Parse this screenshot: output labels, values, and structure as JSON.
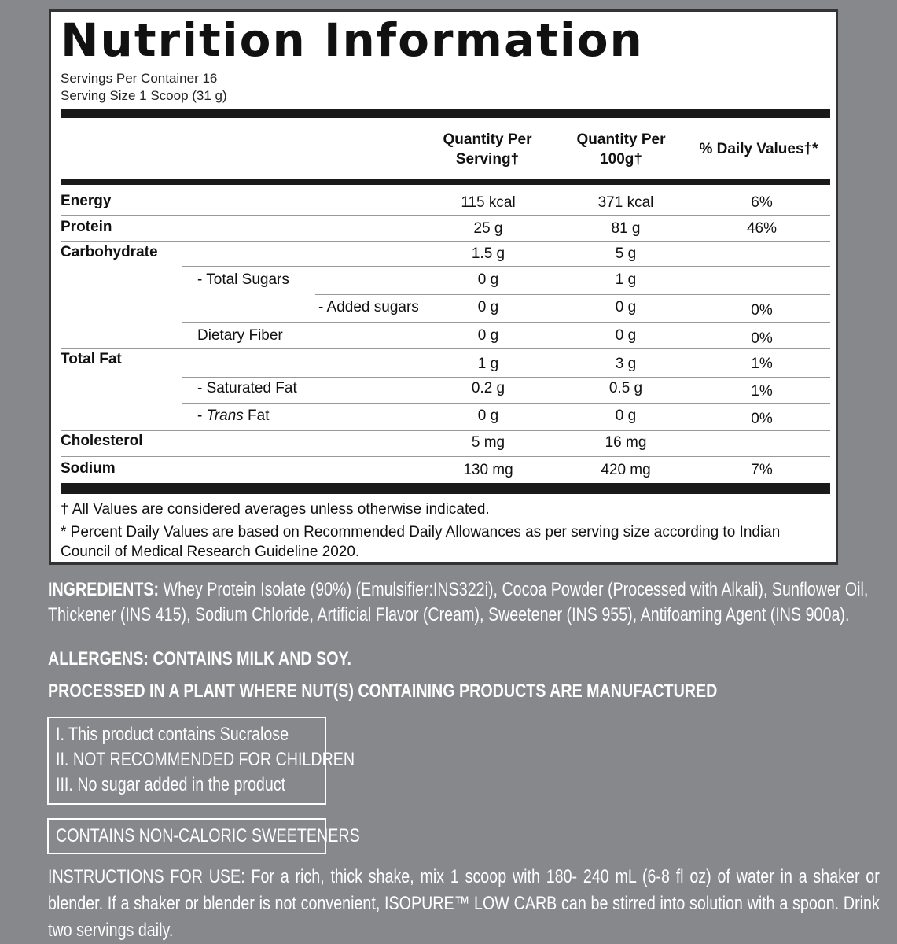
{
  "title": "Nutrition Information",
  "servings_per_container": "Servings Per Container 16",
  "serving_size": "Serving Size 1 Scoop (31 g)",
  "columns": [
    "Quantity Per Serving†",
    "Quantity Per 100g†",
    "% Daily Values†*"
  ],
  "rows": [
    {
      "label": "Energy",
      "level": 0,
      "per_serving": "115 kcal",
      "per_100g": "371 kcal",
      "dv": "6%"
    },
    {
      "label": "Protein",
      "level": 0,
      "per_serving": "25 g",
      "per_100g": "81 g",
      "dv": "46%"
    },
    {
      "label": "Carbohydrate",
      "level": 0,
      "per_serving": "1.5 g",
      "per_100g": "5 g",
      "dv": ""
    },
    {
      "label": "- Total Sugars",
      "level": 1,
      "per_serving": "0 g",
      "per_100g": "1 g",
      "dv": ""
    },
    {
      "label": "- Added sugars",
      "level": 2,
      "per_serving": "0 g",
      "per_100g": "0 g",
      "dv": "0%"
    },
    {
      "label": "Dietary Fiber",
      "level": 1,
      "per_serving": "0 g",
      "per_100g": "0 g",
      "dv": "0%"
    },
    {
      "label": "Total Fat",
      "level": 0,
      "per_serving": "1 g",
      "per_100g": "3 g",
      "dv": "1%"
    },
    {
      "label": "- Saturated Fat",
      "level": 1,
      "per_serving": "0.2 g",
      "per_100g": "0.5 g",
      "dv": "1%"
    },
    {
      "label": "- Trans Fat",
      "level": 1,
      "per_serving": "0 g",
      "per_100g": "0 g",
      "dv": "0%"
    },
    {
      "label": "Cholesterol",
      "level": 0,
      "per_serving": "5 mg",
      "per_100g": "16 mg",
      "dv": ""
    },
    {
      "label": "Sodium",
      "level": 0,
      "per_serving": "130 mg",
      "per_100g": "420 mg",
      "dv": "7%"
    }
  ],
  "footnotes": [
    "† All Values are considered averages unless otherwise indicated.",
    "* Percent Daily Values are based on Recommended Daily Allowances as per serving size according to Indian Council of Medical Research Guideline 2020."
  ],
  "ingredients_label": "INGREDIENTS:",
  "ingredients": "Whey Protein Isolate (90%) (Emulsifier:INS322i),  Cocoa Powder (Processed with Alkali), Sunflower Oil, Thickener (INS 415), Sodium Chloride, Artificial Flavor (Cream), Sweetener (INS 955), Antifoaming Agent (INS 900a).",
  "allergens": "ALLERGENS: CONTAINS MILK AND SOY.",
  "processed": "PROCESSED IN A PLANT WHERE NUT(S) CONTAINING PRODUCTS ARE MANUFACTURED",
  "notices": [
    "I. This product contains Sucralose",
    "II. NOT RECOMMENDED FOR CHILDREN",
    "III. No sugar added in the product"
  ],
  "sweetener_notice": "CONTAINS NON-CALORIC SWEETENERS",
  "instructions": "INSTRUCTIONS FOR USE: For a rich, thick shake, mix 1 scoop with 180- 240 mL (6-8 fl oz) of water in a shaker or blender. If a shaker or blender is not convenient, ISOPURE™ LOW CARB can be stirred into solution with a spoon. Drink two servings daily.",
  "colors": {
    "background": "#87888c",
    "panel": "#ffffff",
    "text_dark": "#111111"
  }
}
